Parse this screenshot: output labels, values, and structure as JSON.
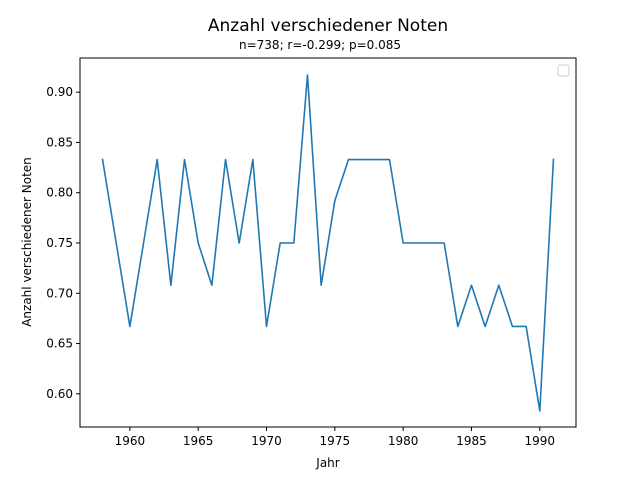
{
  "chart_data": {
    "type": "line",
    "title": "Anzahl verschiedener Noten",
    "subtitle": "n=738; r=-0.299; p=0.085",
    "xlabel": "Jahr",
    "ylabel": "Anzahl verschiedener Noten",
    "xlim": [
      1956.35,
      1992.65
    ],
    "ylim": [
      0.567,
      0.934
    ],
    "xticks": [
      1960,
      1965,
      1970,
      1975,
      1980,
      1985,
      1990
    ],
    "yticks": [
      0.6,
      0.65,
      0.7,
      0.75,
      0.8,
      0.85,
      0.9
    ],
    "grid": false,
    "legend": "top-right",
    "series": [
      {
        "color": "#1f77b4",
        "x": [
          1958,
          1960,
          1962,
          1963,
          1964,
          1965,
          1966,
          1967,
          1968,
          1969,
          1970,
          1971,
          1972,
          1973,
          1974,
          1975,
          1976,
          1977,
          1978,
          1979,
          1980,
          1981,
          1982,
          1983,
          1984,
          1985,
          1986,
          1987,
          1988,
          1989,
          1990,
          1991
        ],
        "y": [
          0.833,
          0.667,
          0.833,
          0.708,
          0.833,
          0.75,
          0.708,
          0.833,
          0.75,
          0.833,
          0.667,
          0.75,
          0.75,
          0.917,
          0.708,
          0.792,
          0.833,
          0.833,
          0.833,
          0.833,
          0.75,
          0.75,
          0.75,
          0.75,
          0.667,
          0.708,
          0.667,
          0.708,
          0.667,
          0.667,
          0.583,
          0.833
        ]
      }
    ]
  }
}
